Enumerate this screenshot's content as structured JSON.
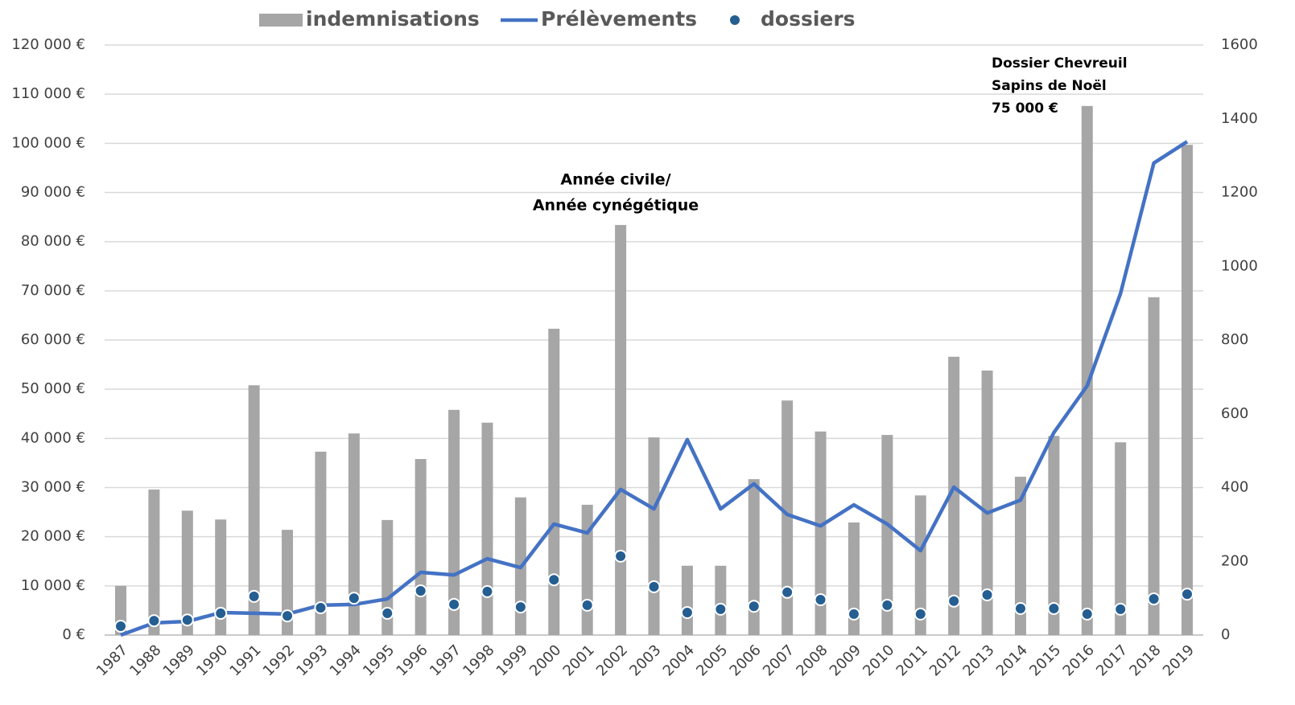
{
  "chart_data": {
    "type": "bar-line",
    "categories": [
      "1987",
      "1988",
      "1989",
      "1990",
      "1991",
      "1992",
      "1993",
      "1994",
      "1995",
      "1996",
      "1997",
      "1998",
      "1999",
      "2000",
      "2001",
      "2002",
      "2003",
      "2004",
      "2005",
      "2006",
      "2007",
      "2008",
      "2009",
      "2010",
      "2011",
      "2012",
      "2013",
      "2014",
      "2015",
      "2016",
      "2017",
      "2018",
      "2019"
    ],
    "series": [
      {
        "name": "indemnisations",
        "type": "bar",
        "color": "#a6a6a6",
        "axis": "y",
        "values": [
          10000,
          29600,
          25300,
          23500,
          50800,
          21400,
          37300,
          41000,
          23400,
          35800,
          45800,
          43200,
          28000,
          62300,
          26500,
          83400,
          40200,
          14100,
          14100,
          31700,
          47700,
          41400,
          22900,
          40700,
          28400,
          56600,
          53800,
          32200,
          40500,
          107600,
          39200,
          68700,
          99700
        ]
      },
      {
        "name": "Prélèvements",
        "type": "line",
        "color": "#4472c4",
        "axis": "y2",
        "values": [
          0,
          33,
          37,
          61,
          59,
          57,
          81,
          83,
          98,
          170,
          163,
          207,
          183,
          301,
          277,
          395,
          342,
          530,
          342,
          410,
          327,
          296,
          353,
          301,
          229,
          401,
          331,
          366,
          549,
          676,
          926,
          1280,
          1338
        ]
      },
      {
        "name": "dossiers",
        "type": "scatter",
        "color": "#255e91",
        "axis": "y2",
        "values": [
          24,
          39,
          41,
          59,
          105,
          52,
          74,
          100,
          59,
          120,
          83,
          118,
          76,
          150,
          81,
          214,
          131,
          61,
          70,
          78,
          116,
          96,
          57,
          81,
          57,
          92,
          109,
          72,
          72,
          57,
          70,
          98,
          111
        ]
      }
    ],
    "ylim": [
      0,
      120000
    ],
    "yticks": [
      {
        "value": 0,
        "label": "0 €"
      },
      {
        "value": 10000,
        "label": "10 000 €"
      },
      {
        "value": 20000,
        "label": "20 000 €"
      },
      {
        "value": 30000,
        "label": "30 000 €"
      },
      {
        "value": 40000,
        "label": "40 000 €"
      },
      {
        "value": 50000,
        "label": "50 000 €"
      },
      {
        "value": 60000,
        "label": "60 000 €"
      },
      {
        "value": 70000,
        "label": "70 000 €"
      },
      {
        "value": 80000,
        "label": "80 000 €"
      },
      {
        "value": 90000,
        "label": "90 000 €"
      },
      {
        "value": 100000,
        "label": "100 000 €"
      },
      {
        "value": 110000,
        "label": "110 000 €"
      },
      {
        "value": 120000,
        "label": "120 000 €"
      }
    ],
    "y2lim": [
      0,
      1600
    ],
    "y2ticks": [
      0,
      200,
      400,
      600,
      800,
      1000,
      1200,
      1400,
      1600
    ],
    "grid": true,
    "legend": "top",
    "annotations": [
      [
        "Année civile/",
        "Année cynégétique"
      ],
      [
        "Dossier Chevreuil",
        "Sapins de Noël",
        "75 000 €"
      ]
    ]
  }
}
